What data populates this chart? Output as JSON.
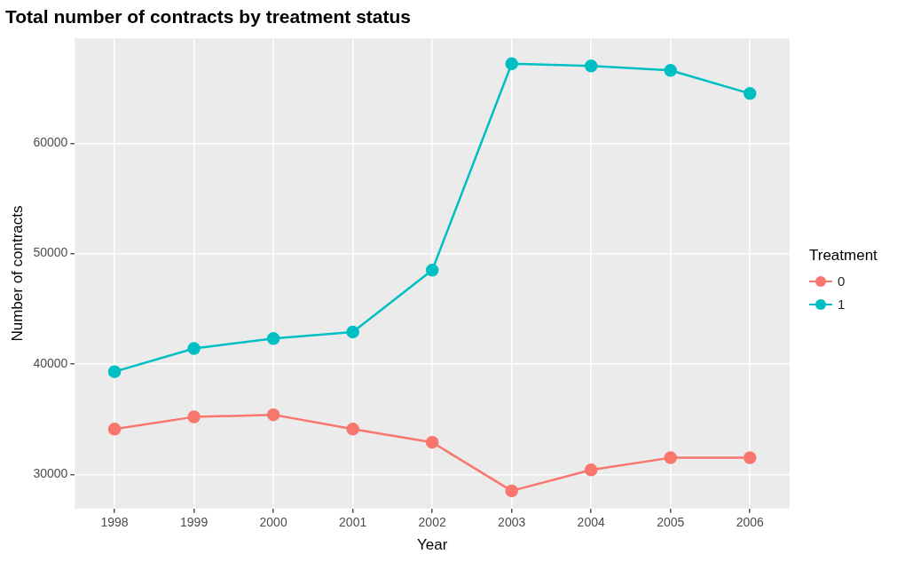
{
  "chart_data": {
    "type": "line",
    "title": "Total number of contracts by treatment status",
    "xlabel": "Year",
    "ylabel": "Number of contracts",
    "legend_title": "Treatment",
    "categories": [
      "1998",
      "1999",
      "2000",
      "2001",
      "2002",
      "2003",
      "2004",
      "2005",
      "2006"
    ],
    "series": [
      {
        "name": "0",
        "color": "#f8766d",
        "values": [
          34100,
          35200,
          35400,
          34100,
          32900,
          28500,
          30400,
          31500,
          31500
        ]
      },
      {
        "name": "1",
        "color": "#00bfc4",
        "values": [
          39300,
          41400,
          42300,
          42900,
          48500,
          67200,
          67000,
          66600,
          64500
        ]
      }
    ],
    "ylim": [
      26900,
      69500
    ],
    "yticks": [
      30000,
      40000,
      50000,
      60000
    ],
    "grid": true,
    "legend": "right",
    "marker": "circle",
    "line_style": "solid"
  }
}
